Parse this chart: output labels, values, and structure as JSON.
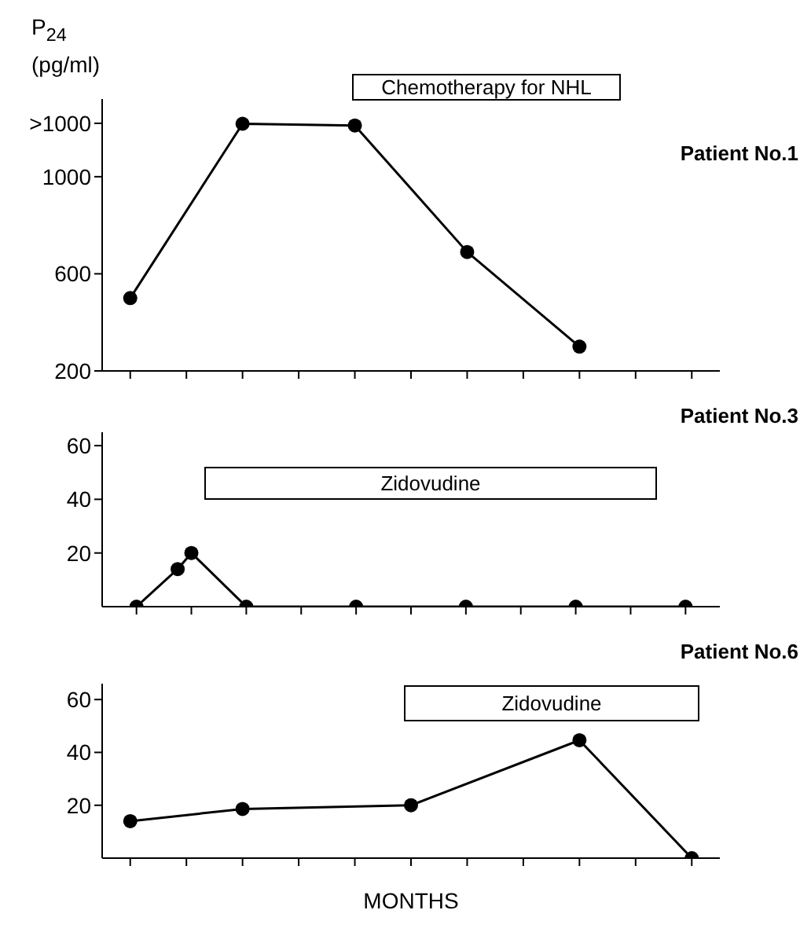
{
  "chart_data": [
    {
      "type": "line",
      "title": "Patient No.1",
      "ylabel": "P$_{24}$ (pg/ml)",
      "annotations": [
        "Chemotherapy for NHL"
      ],
      "categories": [
        null,
        null,
        null,
        null,
        null,
        null,
        null,
        null,
        null,
        null,
        null
      ],
      "series": [
        {
          "color": "#000000",
          "values": [
            500,
            null,
            1218,
            null,
            1211,
            null,
            690,
            null,
            300,
            null,
            null
          ]
        }
      ],
      "ylim": [
        200,
        1320
      ],
      "yticks": [
        200,
        600,
        1000,
        {
          "value": 1220,
          "label": ">1000"
        }
      ],
      "marker": "circle",
      "line_style": "solid"
    },
    {
      "type": "line",
      "title": "Patient No.3",
      "annotations": [
        "Zidovudine"
      ],
      "categories": [
        null,
        null,
        null,
        null,
        null,
        null,
        null,
        null,
        null,
        null,
        null,
        null,
        null,
        null,
        null,
        null,
        null,
        null,
        null,
        null,
        null,
        null,
        null,
        null,
        null,
        null,
        null,
        null,
        null,
        null,
        null,
        null,
        null,
        null,
        null,
        null,
        null,
        null,
        null,
        null,
        null,
        null,
        null,
        null,
        null
      ],
      "series": [
        {
          "color": "#000000",
          "values": [
            null,
            null,
            0,
            null,
            null,
            14,
            20,
            null,
            null,
            null,
            0,
            null,
            null,
            null,
            null,
            null,
            null,
            null,
            0,
            null,
            null,
            null,
            null,
            null,
            null,
            null,
            0,
            null,
            null,
            null,
            null,
            null,
            null,
            null,
            0,
            null,
            null,
            null,
            null,
            null,
            null,
            null,
            0,
            null,
            null
          ]
        }
      ],
      "ylim": [
        0,
        65
      ],
      "yticks": [
        20,
        40,
        60
      ],
      "marker": "circle",
      "line_style": "solid"
    },
    {
      "type": "line",
      "title": "Patient No.6",
      "xlabel": "MONTHS",
      "annotations": [
        "Zidovudine"
      ],
      "categories": [
        null,
        null,
        null,
        null,
        null,
        null,
        null,
        null,
        null,
        null,
        null
      ],
      "series": [
        {
          "color": "#000000",
          "values": [
            14,
            null,
            18.6,
            null,
            null,
            20,
            null,
            null,
            44.6,
            null,
            0
          ]
        }
      ],
      "ylim": [
        0,
        66
      ],
      "yticks": [
        20,
        40,
        60
      ],
      "marker": "circle",
      "line_style": "solid"
    }
  ]
}
